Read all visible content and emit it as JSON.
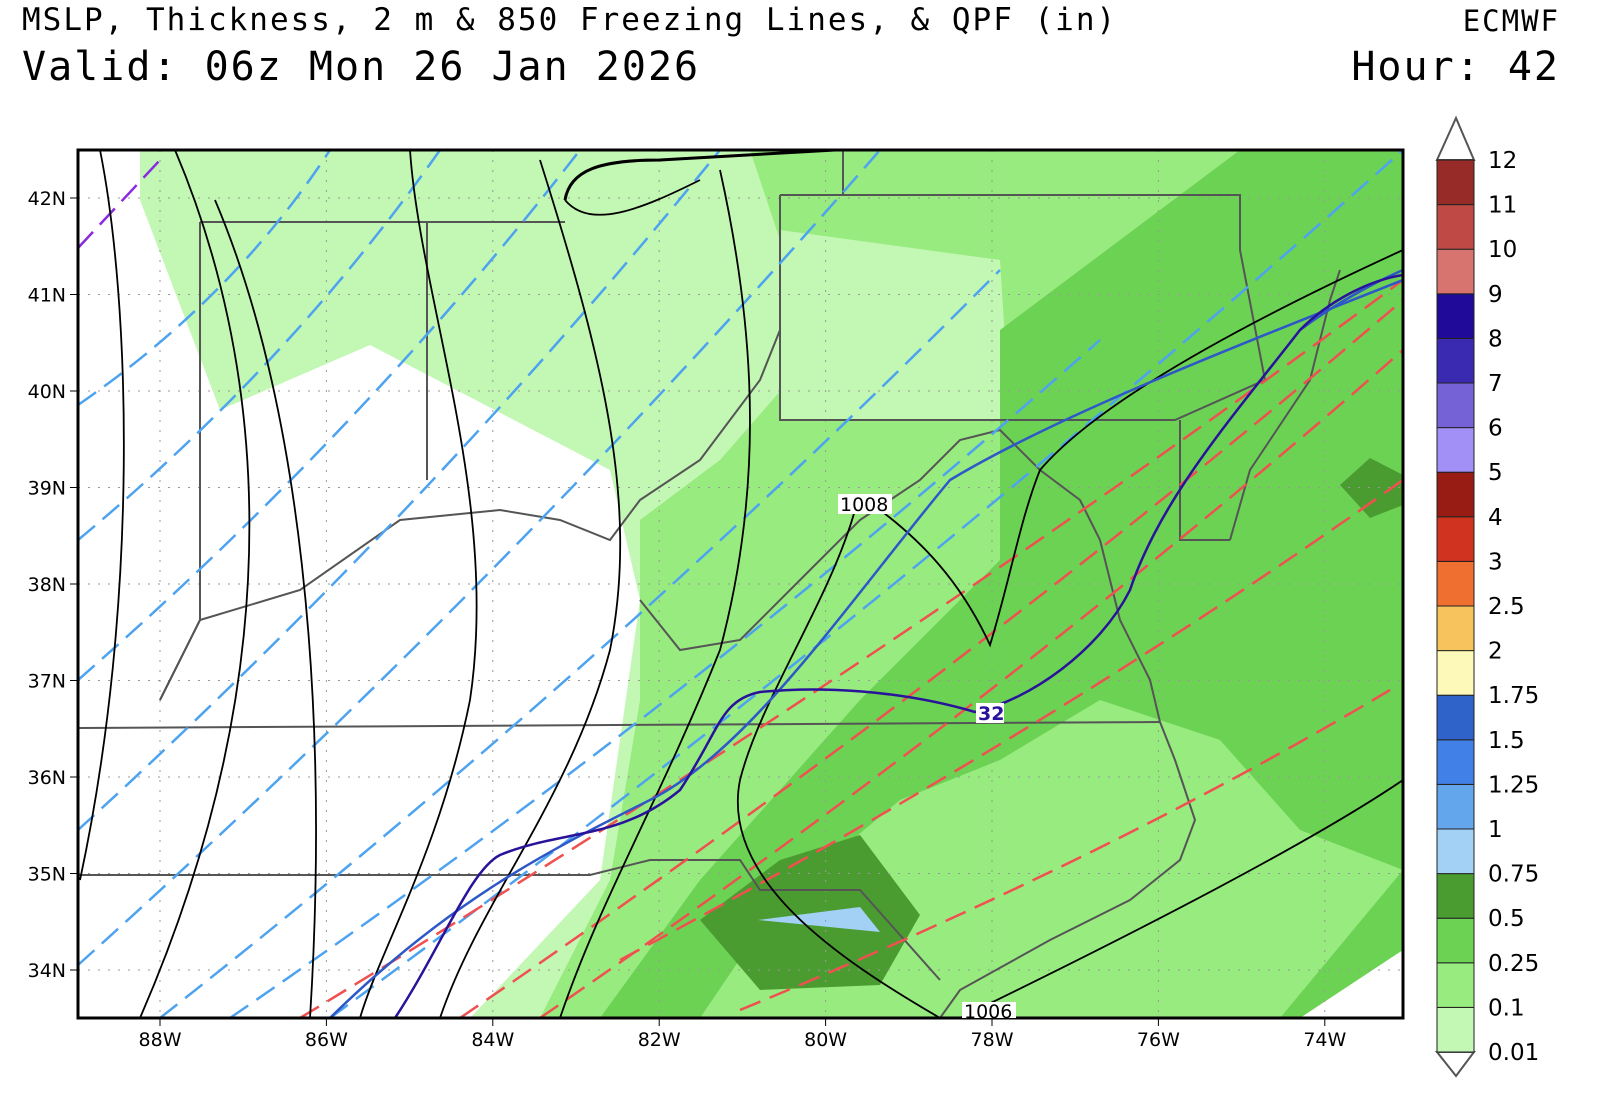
{
  "header": {
    "title": "MSLP, Thickness, 2 m & 850 Freezing Lines, & QPF (in)",
    "valid": "Valid: 06z Mon 26 Jan 2026",
    "model": "ECMWF",
    "hour": "Hour: 42"
  },
  "map": {
    "lon_labels": [
      "88W",
      "86W",
      "84W",
      "82W",
      "80W",
      "78W",
      "76W",
      "74W"
    ],
    "lat_labels": [
      "42N",
      "41N",
      "40N",
      "39N",
      "38N",
      "37N",
      "36N",
      "35N",
      "34N"
    ],
    "contour_labels": {
      "isobar_north": "1008",
      "isobar_south": "1006",
      "freezing_2m": "32"
    }
  },
  "colorbar": {
    "levels": [
      "0.01",
      "0.1",
      "0.25",
      "0.5",
      "0.75",
      "1",
      "1.25",
      "1.5",
      "1.75",
      "2",
      "2.5",
      "3",
      "4",
      "5",
      "6",
      "7",
      "8",
      "9",
      "10",
      "11",
      "12"
    ],
    "colors": [
      "#c3f7b4",
      "#98eb7f",
      "#6cd254",
      "#4a9c30",
      "#a3d1f5",
      "#64a6ec",
      "#4180e6",
      "#2f63c9",
      "#fdf9b8",
      "#f6c35c",
      "#ee6f2f",
      "#d03320",
      "#981c14",
      "#a290f6",
      "#7462d6",
      "#3a2ab2",
      "#200a9a",
      "#d87470",
      "#bf4a45",
      "#962b27"
    ]
  },
  "colors": {
    "thickness_cold": "#4da3f0",
    "thickness_warm": "#f05050",
    "freezing_850": "#2e58c8",
    "freezing_2m": "#28139a",
    "isobar": "#000000",
    "qpf_light": "#c3f7b4",
    "qpf_med": "#98eb7f",
    "qpf_heavy": "#6cd254",
    "qpf_dark": "#4a9c30"
  }
}
